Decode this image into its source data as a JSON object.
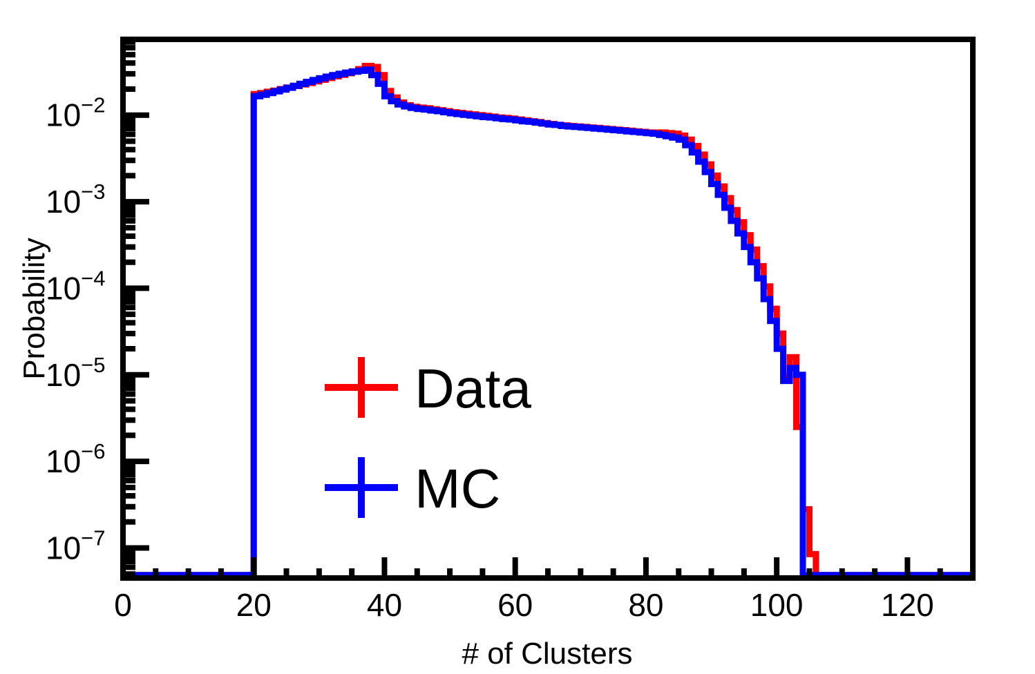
{
  "chart_data": {
    "type": "line",
    "xlabel": "# of Clusters",
    "ylabel": "Probability",
    "xlim": [
      0,
      130
    ],
    "ylim": [
      4.5e-08,
      0.075
    ],
    "yscale": "log",
    "x_ticks": [
      0,
      20,
      40,
      60,
      80,
      100,
      120
    ],
    "x_tick_labels": [
      "0",
      "20",
      "40",
      "60",
      "80",
      "100",
      "120"
    ],
    "y_ticks": [
      {
        "value": 0.01,
        "base": "10",
        "exp": "−2"
      },
      {
        "value": 0.001,
        "base": "10",
        "exp": "−3"
      },
      {
        "value": 0.0001,
        "base": "10",
        "exp": "−4"
      },
      {
        "value": 1e-05,
        "base": "10",
        "exp": "−5"
      },
      {
        "value": 1e-06,
        "base": "10",
        "exp": "−6"
      },
      {
        "value": 1e-07,
        "base": "10",
        "exp": "−7"
      }
    ],
    "bin_width": 1,
    "legend_position": "lower-left",
    "series": [
      {
        "name": "Data",
        "color": "#ff0000",
        "x": [
          20,
          21,
          22,
          23,
          24,
          25,
          26,
          27,
          28,
          29,
          30,
          31,
          32,
          33,
          34,
          35,
          36,
          37,
          38,
          39,
          40,
          41,
          42,
          43,
          44,
          45,
          46,
          47,
          48,
          49,
          50,
          51,
          52,
          53,
          54,
          55,
          56,
          57,
          58,
          59,
          60,
          61,
          62,
          63,
          64,
          65,
          66,
          67,
          68,
          69,
          70,
          71,
          72,
          73,
          74,
          75,
          76,
          77,
          78,
          79,
          80,
          81,
          82,
          83,
          84,
          85,
          86,
          87,
          88,
          89,
          90,
          91,
          92,
          93,
          94,
          95,
          96,
          97,
          98,
          99,
          100,
          101,
          102,
          103,
          104,
          105,
          106
        ],
        "y": [
          0.0175,
          0.018,
          0.0186,
          0.0192,
          0.02,
          0.0208,
          0.0217,
          0.0226,
          0.0235,
          0.0245,
          0.0256,
          0.0268,
          0.028,
          0.0292,
          0.0305,
          0.032,
          0.034,
          0.037,
          0.036,
          0.029,
          0.019,
          0.016,
          0.014,
          0.013,
          0.0125,
          0.0122,
          0.012,
          0.0117,
          0.0114,
          0.0111,
          0.0108,
          0.0106,
          0.0104,
          0.0102,
          0.01,
          0.0098,
          0.0096,
          0.0094,
          0.0093,
          0.0091,
          0.0089,
          0.0087,
          0.0085,
          0.0083,
          0.0081,
          0.0079,
          0.0077,
          0.0076,
          0.0075,
          0.0074,
          0.0073,
          0.0072,
          0.0071,
          0.007,
          0.0069,
          0.0068,
          0.0067,
          0.0066,
          0.0065,
          0.0064,
          0.0063,
          0.0063,
          0.0063,
          0.0062,
          0.0061,
          0.0058,
          0.0052,
          0.0044,
          0.0035,
          0.0027,
          0.002,
          0.0015,
          0.0011,
          0.0008,
          0.00058,
          0.00041,
          0.00028,
          0.00018,
          0.000105,
          5.8e-05,
          3e-05,
          9.5e-06,
          1.6e-05,
          2.5e-06,
          2.8e-07,
          8.5e-08,
          4.8e-08
        ]
      },
      {
        "name": "MC",
        "color": "#0000ff",
        "x": [
          20,
          21,
          22,
          23,
          24,
          25,
          26,
          27,
          28,
          29,
          30,
          31,
          32,
          33,
          34,
          35,
          36,
          37,
          38,
          39,
          40,
          41,
          42,
          43,
          44,
          45,
          46,
          47,
          48,
          49,
          50,
          51,
          52,
          53,
          54,
          55,
          56,
          57,
          58,
          59,
          60,
          61,
          62,
          63,
          64,
          65,
          66,
          67,
          68,
          69,
          70,
          71,
          72,
          73,
          74,
          75,
          76,
          77,
          78,
          79,
          80,
          81,
          82,
          83,
          84,
          85,
          86,
          87,
          88,
          89,
          90,
          91,
          92,
          93,
          94,
          95,
          96,
          97,
          98,
          99,
          100,
          101,
          102,
          103,
          104
        ],
        "y": [
          0.0165,
          0.0172,
          0.018,
          0.0188,
          0.0197,
          0.0207,
          0.0218,
          0.023,
          0.0242,
          0.0254,
          0.0266,
          0.0278,
          0.029,
          0.03,
          0.031,
          0.0318,
          0.0325,
          0.0335,
          0.029,
          0.023,
          0.0165,
          0.0145,
          0.0133,
          0.0126,
          0.0121,
          0.0118,
          0.0116,
          0.0113,
          0.0111,
          0.0108,
          0.0105,
          0.0103,
          0.0101,
          0.0099,
          0.0097,
          0.0095,
          0.0094,
          0.0092,
          0.009,
          0.0089,
          0.0087,
          0.0085,
          0.0084,
          0.0082,
          0.008,
          0.0078,
          0.0077,
          0.0075,
          0.0074,
          0.0073,
          0.0072,
          0.0071,
          0.007,
          0.0069,
          0.0068,
          0.0067,
          0.0066,
          0.0065,
          0.0064,
          0.0063,
          0.0062,
          0.0061,
          0.0059,
          0.0057,
          0.0055,
          0.0052,
          0.0045,
          0.0037,
          0.0029,
          0.0022,
          0.0016,
          0.0012,
          0.00085,
          0.0006,
          0.00043,
          0.0003,
          0.0002,
          0.00013,
          7.5e-05,
          4.2e-05,
          2e-05,
          8.5e-06,
          1.2e-05,
          1e-05,
          4.8e-08
        ]
      }
    ]
  }
}
